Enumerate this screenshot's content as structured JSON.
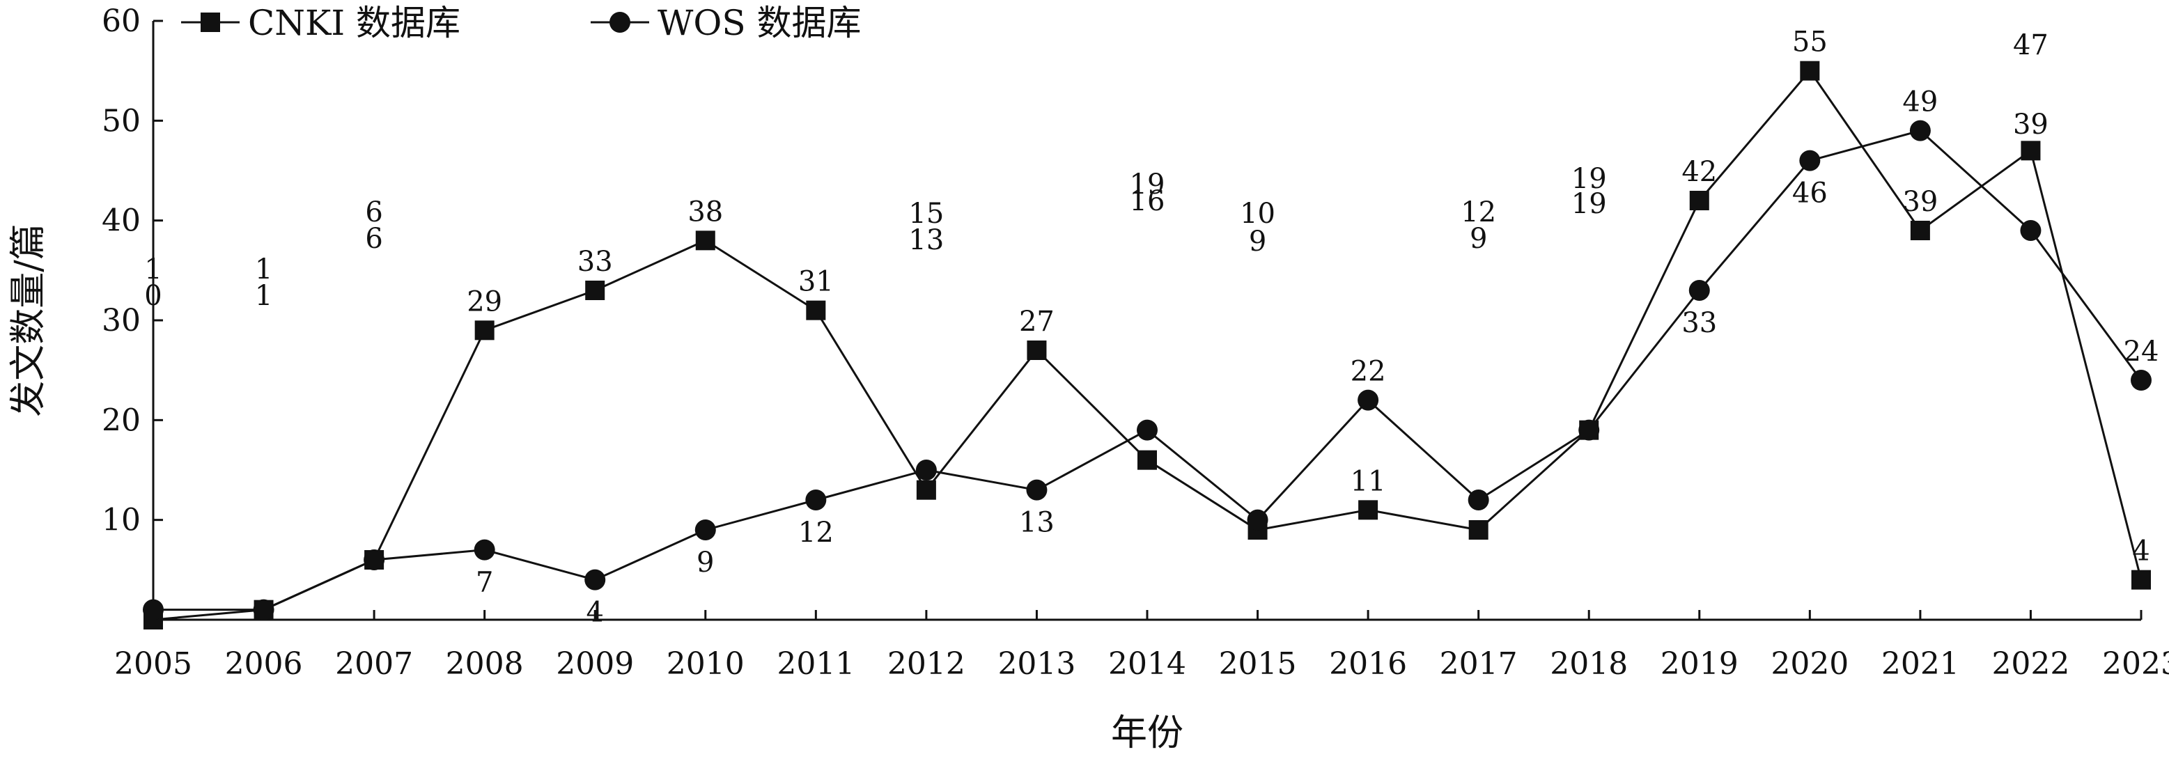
{
  "chart_data": {
    "type": "line",
    "title": "",
    "xlabel": "年份",
    "ylabel": "发文数量/篇",
    "x": [
      "2005",
      "2006",
      "2007",
      "2008",
      "2009",
      "2010",
      "2011",
      "2012",
      "2013",
      "2014",
      "2015",
      "2016",
      "2017",
      "2018",
      "2019",
      "2020",
      "2021",
      "2022",
      "2023"
    ],
    "y_ticks": [
      "10",
      "20",
      "30",
      "40",
      "50",
      "60"
    ],
    "ylim": [
      0,
      60
    ],
    "grid": false,
    "legend_position": "top-left",
    "series": [
      {
        "name": "CNKI 数据库",
        "marker": "square",
        "color": "#111111",
        "values": [
          0,
          1,
          6,
          29,
          33,
          38,
          31,
          13,
          27,
          16,
          9,
          11,
          9,
          19,
          42,
          55,
          39,
          47,
          4
        ],
        "labels": [
          "0",
          "1",
          "6",
          "29",
          "33",
          "38",
          "31",
          "13",
          "27",
          "16",
          "9",
          "11",
          "9",
          "19",
          "42",
          "55",
          "39",
          "47",
          "4"
        ]
      },
      {
        "name": "WOS 数据库",
        "marker": "circle",
        "color": "#111111",
        "values": [
          1,
          1,
          6,
          7,
          4,
          9,
          12,
          15,
          13,
          19,
          10,
          22,
          12,
          19,
          33,
          46,
          49,
          39,
          24
        ],
        "labels": [
          "1",
          "1",
          "6",
          "7",
          "4",
          "9",
          "12",
          "15",
          "13",
          "19",
          "10",
          "22",
          "12",
          "19",
          "33",
          "46",
          "49",
          "39",
          "24"
        ]
      }
    ]
  }
}
